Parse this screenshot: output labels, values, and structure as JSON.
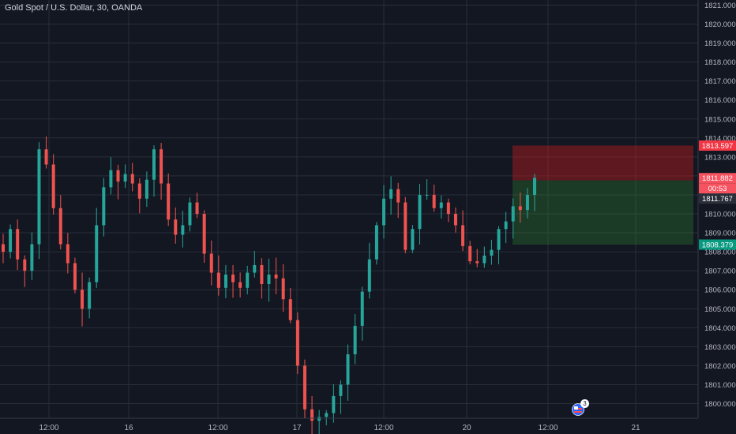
{
  "header": {
    "symbol_title": "Gold Spot / U.S. Dollar, 30, OANDA"
  },
  "price_axis": {
    "ticks": [
      "1821.000",
      "1820.000",
      "1819.000",
      "1818.000",
      "1817.000",
      "1816.000",
      "1815.000",
      "1814.000",
      "1813.000",
      "1812.000",
      "1811.000",
      "1810.000",
      "1809.000",
      "1808.000",
      "1807.000",
      "1806.000",
      "1805.000",
      "1804.000",
      "1803.000",
      "1802.000",
      "1801.000",
      "1800.000"
    ]
  },
  "time_axis": {
    "labels": [
      "12:00",
      "16",
      "12:00",
      "17",
      "12:00",
      "20",
      "12:00",
      "21"
    ]
  },
  "price_badges": {
    "stop": {
      "value": "1813.597",
      "color": "#f23645"
    },
    "current": {
      "value": "1811.882",
      "color": "#f7525f"
    },
    "countdown": {
      "value": "00:53",
      "color": "#f7525f"
    },
    "reference": {
      "value": "1811.767",
      "color": "#2a2e39"
    },
    "target": {
      "value": "1808.379",
      "color": "#089981"
    }
  },
  "events": {
    "count": "3",
    "icon": "us-flag-icon"
  },
  "colors": {
    "up": "#26a69a",
    "down": "#ef5350",
    "background": "#131722",
    "grid": "#2a2e39",
    "profit_zone": "#2e7d32",
    "loss_zone": "#b71c1c"
  },
  "chart_data": {
    "type": "candlestick",
    "title": "Gold Spot / U.S. Dollar, 30, OANDA",
    "xlabel": "",
    "ylabel": "",
    "ylim": [
      1799.4,
      1821.3
    ],
    "grid": true,
    "x_tick_labels": [
      "12:00",
      "16",
      "12:00",
      "17",
      "12:00",
      "20",
      "12:00",
      "21"
    ],
    "y_tick_labels": [
      "1800.000",
      "1801.000",
      "1802.000",
      "1803.000",
      "1804.000",
      "1805.000",
      "1806.000",
      "1807.000",
      "1808.000",
      "1809.000",
      "1810.000",
      "1811.000",
      "1812.000",
      "1813.000",
      "1814.000",
      "1815.000",
      "1816.000",
      "1817.000",
      "1818.000",
      "1819.000",
      "1820.000",
      "1821.000"
    ],
    "position": {
      "side": "short",
      "entry": 1811.767,
      "stop": 1813.597,
      "target": 1808.379
    },
    "last_price": 1811.882,
    "approx_close_path": [
      1808.0,
      1809.2,
      1807.6,
      1807.0,
      1808.4,
      1813.4,
      1812.6,
      1810.3,
      1808.4,
      1807.4,
      1806.0,
      1805.0,
      1806.4,
      1809.4,
      1811.4,
      1812.3,
      1811.7,
      1812.1,
      1811.6,
      1810.8,
      1811.8,
      1813.4,
      1811.6,
      1809.7,
      1808.9,
      1809.4,
      1810.6,
      1810.0,
      1807.9,
      1806.9,
      1806.1,
      1806.8,
      1806.4,
      1806.1,
      1806.9,
      1807.3,
      1806.3,
      1806.8,
      1806.6,
      1805.5,
      1804.4,
      1802.0,
      1799.7,
      1799.1,
      1799.3,
      1799.5,
      1800.4,
      1801.0,
      1802.6,
      1804.1,
      1805.9,
      1807.6,
      1809.4,
      1810.8,
      1811.3,
      1810.6,
      1808.1,
      1809.2,
      1811.0,
      1811.0,
      1810.3,
      1810.6,
      1810.0,
      1809.4,
      1808.3,
      1807.5,
      1807.4,
      1807.8,
      1808.1,
      1809.2,
      1809.6,
      1810.4,
      1810.2,
      1811.0,
      1811.9
    ]
  }
}
